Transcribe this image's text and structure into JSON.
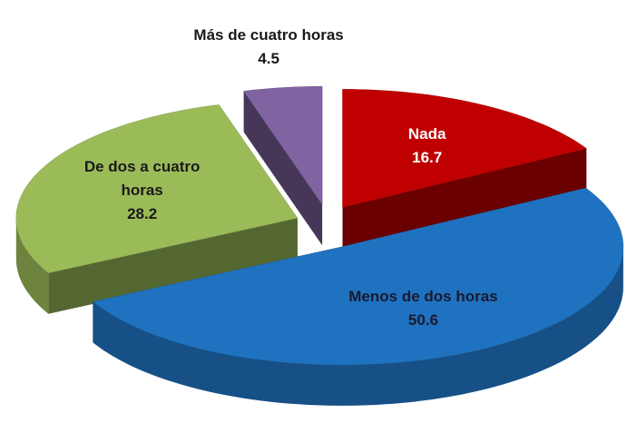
{
  "chart_data": {
    "type": "pie3d",
    "categories": [
      "Nada",
      "Menos de dos horas",
      "De dos a cuatro horas",
      "Más de cuatro horas"
    ],
    "values": [
      16.7,
      50.6,
      28.2,
      4.5
    ],
    "colors": [
      "#c00000",
      "#1f72c0",
      "#9bbb59",
      "#8064a2"
    ],
    "label_colors": [
      "#ffffff",
      "#1a1a2e",
      "#1a1a1a",
      "#1a1a1a"
    ]
  }
}
